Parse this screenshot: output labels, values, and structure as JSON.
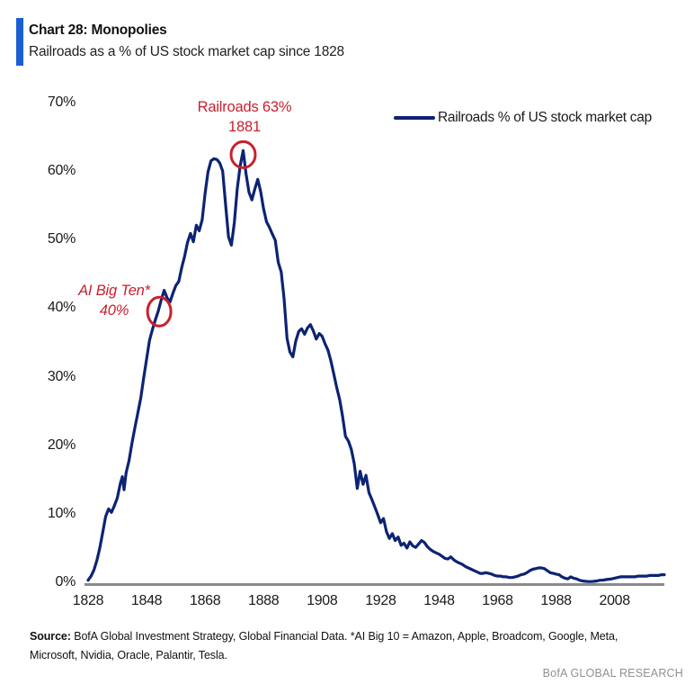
{
  "header": {
    "title": "Chart 28: Monopolies",
    "subtitle": "Railroads as a % of US stock market cap since 1828",
    "accent_color": "#1a5fd2"
  },
  "legend": {
    "label": "Railroads % of US stock market cap",
    "line_color": "#0d2373"
  },
  "annotations": {
    "peak": {
      "line1": "Railroads 63%",
      "line2": "1881",
      "circle_year": 1881,
      "circle_value": 62.4,
      "color": "#c8202f"
    },
    "ai_big_ten": {
      "line1": "AI Big Ten*",
      "line2": "40%",
      "circle_year": 1852.3,
      "circle_value": 39.5,
      "color": "#c8202f"
    }
  },
  "footer": {
    "source_label": "Source:",
    "source_line1": "BofA Global Investment Strategy, Global Financial Data. *AI Big 10 = Amazon, Apple, Broadcom, Google, Meta,",
    "source_line2": "Microsoft, Nvidia, Oracle, Palantir, Tesla.",
    "brand": "BofA GLOBAL RESEARCH"
  },
  "chart_data": {
    "type": "line",
    "title": "Railroads as a % of US stock market cap since 1828",
    "xlabel": "",
    "ylabel": "",
    "xlim": [
      1828,
      2025
    ],
    "ylim": [
      0,
      70
    ],
    "grid": false,
    "legend_position": "top-right",
    "axis_color": "#8a8a8a",
    "y_ticks": [
      70,
      60,
      50,
      40,
      30,
      20,
      10,
      0
    ],
    "y_tick_suffix": "%",
    "x_ticks": [
      1828,
      1848,
      1868,
      1888,
      1908,
      1928,
      1948,
      1968,
      1988,
      2008
    ],
    "series": [
      {
        "name": "Railroads % of US stock market cap",
        "color": "#0d2373",
        "points": [
          [
            1828,
            0.3
          ],
          [
            1829,
            0.9
          ],
          [
            1830,
            1.8
          ],
          [
            1831,
            3.2
          ],
          [
            1832,
            5.0
          ],
          [
            1833,
            7.3
          ],
          [
            1834,
            9.6
          ],
          [
            1835,
            10.7
          ],
          [
            1836,
            10.2
          ],
          [
            1837,
            11.2
          ],
          [
            1838,
            12.3
          ],
          [
            1839,
            14.4
          ],
          [
            1839.7,
            15.4
          ],
          [
            1840.3,
            13.5
          ],
          [
            1841,
            16.0
          ],
          [
            1842,
            17.8
          ],
          [
            1843,
            20.3
          ],
          [
            1844,
            22.6
          ],
          [
            1845,
            24.7
          ],
          [
            1846,
            26.9
          ],
          [
            1847,
            29.8
          ],
          [
            1848,
            32.6
          ],
          [
            1849,
            35.3
          ],
          [
            1850,
            36.9
          ],
          [
            1851,
            38.3
          ],
          [
            1852,
            39.6
          ],
          [
            1853,
            41.2
          ],
          [
            1854,
            42.6
          ],
          [
            1855,
            41.5
          ],
          [
            1856,
            40.9
          ],
          [
            1857,
            42.2
          ],
          [
            1858,
            43.3
          ],
          [
            1859,
            43.9
          ],
          [
            1860,
            45.9
          ],
          [
            1861,
            47.6
          ],
          [
            1862,
            49.6
          ],
          [
            1863,
            50.9
          ],
          [
            1864,
            49.7
          ],
          [
            1865,
            52.1
          ],
          [
            1866,
            51.3
          ],
          [
            1867,
            52.9
          ],
          [
            1868,
            56.8
          ],
          [
            1869,
            59.9
          ],
          [
            1870,
            61.5
          ],
          [
            1871,
            61.8
          ],
          [
            1872,
            61.7
          ],
          [
            1873,
            61.2
          ],
          [
            1874,
            60.0
          ],
          [
            1875,
            55.2
          ],
          [
            1876,
            50.4
          ],
          [
            1877,
            49.2
          ],
          [
            1878,
            52.5
          ],
          [
            1879,
            57.4
          ],
          [
            1880,
            60.8
          ],
          [
            1881,
            63.0
          ],
          [
            1882,
            59.6
          ],
          [
            1883,
            56.9
          ],
          [
            1884,
            55.8
          ],
          [
            1885,
            57.4
          ],
          [
            1886,
            58.8
          ],
          [
            1887,
            57.0
          ],
          [
            1888,
            54.5
          ],
          [
            1889,
            52.6
          ],
          [
            1890,
            51.8
          ],
          [
            1891,
            50.8
          ],
          [
            1892,
            49.9
          ],
          [
            1893,
            46.7
          ],
          [
            1894,
            45.3
          ],
          [
            1895,
            41.4
          ],
          [
            1896,
            35.6
          ],
          [
            1897,
            33.6
          ],
          [
            1898,
            32.9
          ],
          [
            1899,
            35.2
          ],
          [
            1900,
            36.6
          ],
          [
            1901,
            37.0
          ],
          [
            1902,
            36.2
          ],
          [
            1903,
            37.1
          ],
          [
            1904,
            37.6
          ],
          [
            1905,
            36.7
          ],
          [
            1906,
            35.5
          ],
          [
            1907,
            36.3
          ],
          [
            1908,
            35.9
          ],
          [
            1909,
            34.8
          ],
          [
            1910,
            33.9
          ],
          [
            1911,
            32.3
          ],
          [
            1912,
            30.4
          ],
          [
            1913,
            28.4
          ],
          [
            1914,
            26.7
          ],
          [
            1915,
            24.2
          ],
          [
            1916,
            21.3
          ],
          [
            1917,
            20.6
          ],
          [
            1918,
            19.4
          ],
          [
            1919,
            17.3
          ],
          [
            1920,
            13.7
          ],
          [
            1921,
            16.2
          ],
          [
            1922,
            14.3
          ],
          [
            1923,
            15.6
          ],
          [
            1924,
            13.1
          ],
          [
            1925,
            12.1
          ],
          [
            1926,
            11.0
          ],
          [
            1927,
            9.9
          ],
          [
            1928,
            8.7
          ],
          [
            1929,
            9.3
          ],
          [
            1930,
            7.4
          ],
          [
            1931,
            6.4
          ],
          [
            1932,
            7.1
          ],
          [
            1933,
            6.1
          ],
          [
            1934,
            6.6
          ],
          [
            1935,
            5.4
          ],
          [
            1936,
            5.7
          ],
          [
            1937,
            5.0
          ],
          [
            1938,
            5.9
          ],
          [
            1939,
            5.3
          ],
          [
            1940,
            5.1
          ],
          [
            1941,
            5.6
          ],
          [
            1942,
            6.1
          ],
          [
            1943,
            5.8
          ],
          [
            1944,
            5.2
          ],
          [
            1945,
            4.8
          ],
          [
            1946,
            4.5
          ],
          [
            1947,
            4.3
          ],
          [
            1948,
            4.1
          ],
          [
            1949,
            3.8
          ],
          [
            1950,
            3.5
          ],
          [
            1951,
            3.4
          ],
          [
            1952,
            3.7
          ],
          [
            1953,
            3.3
          ],
          [
            1954,
            3.0
          ],
          [
            1955,
            2.8
          ],
          [
            1956,
            2.6
          ],
          [
            1957,
            2.3
          ],
          [
            1958,
            2.1
          ],
          [
            1959,
            1.9
          ],
          [
            1960,
            1.7
          ],
          [
            1961,
            1.5
          ],
          [
            1962,
            1.3
          ],
          [
            1963,
            1.3
          ],
          [
            1964,
            1.4
          ],
          [
            1965,
            1.3
          ],
          [
            1966,
            1.2
          ],
          [
            1967,
            1.0
          ],
          [
            1968,
            0.9
          ],
          [
            1969,
            0.9
          ],
          [
            1970,
            0.8
          ],
          [
            1971,
            0.8
          ],
          [
            1972,
            0.7
          ],
          [
            1973,
            0.7
          ],
          [
            1974,
            0.8
          ],
          [
            1975,
            0.9
          ],
          [
            1976,
            1.1
          ],
          [
            1977,
            1.2
          ],
          [
            1978,
            1.4
          ],
          [
            1979,
            1.7
          ],
          [
            1980,
            1.9
          ],
          [
            1981,
            2.0
          ],
          [
            1982,
            2.1
          ],
          [
            1983,
            2.1
          ],
          [
            1984,
            2.0
          ],
          [
            1985,
            1.7
          ],
          [
            1986,
            1.4
          ],
          [
            1987,
            1.3
          ],
          [
            1988,
            1.2
          ],
          [
            1989,
            1.1
          ],
          [
            1990,
            0.8
          ],
          [
            1991,
            0.6
          ],
          [
            1992,
            0.5
          ],
          [
            1993,
            0.8
          ],
          [
            1994,
            0.6
          ],
          [
            1995,
            0.5
          ],
          [
            1996,
            0.3
          ],
          [
            1997,
            0.2
          ],
          [
            1998,
            0.15
          ],
          [
            1999,
            0.1
          ],
          [
            2000,
            0.1
          ],
          [
            2001,
            0.15
          ],
          [
            2002,
            0.2
          ],
          [
            2003,
            0.3
          ],
          [
            2004,
            0.3
          ],
          [
            2005,
            0.4
          ],
          [
            2006,
            0.45
          ],
          [
            2007,
            0.5
          ],
          [
            2008,
            0.6
          ],
          [
            2009,
            0.7
          ],
          [
            2010,
            0.8
          ],
          [
            2011,
            0.8
          ],
          [
            2012,
            0.8
          ],
          [
            2013,
            0.8
          ],
          [
            2014,
            0.8
          ],
          [
            2015,
            0.8
          ],
          [
            2016,
            0.9
          ],
          [
            2017,
            0.9
          ],
          [
            2018,
            0.9
          ],
          [
            2019,
            0.9
          ],
          [
            2020,
            1.0
          ],
          [
            2021,
            1.0
          ],
          [
            2022,
            1.0
          ],
          [
            2023,
            1.0
          ],
          [
            2024,
            1.1
          ],
          [
            2025,
            1.1
          ]
        ]
      }
    ]
  }
}
